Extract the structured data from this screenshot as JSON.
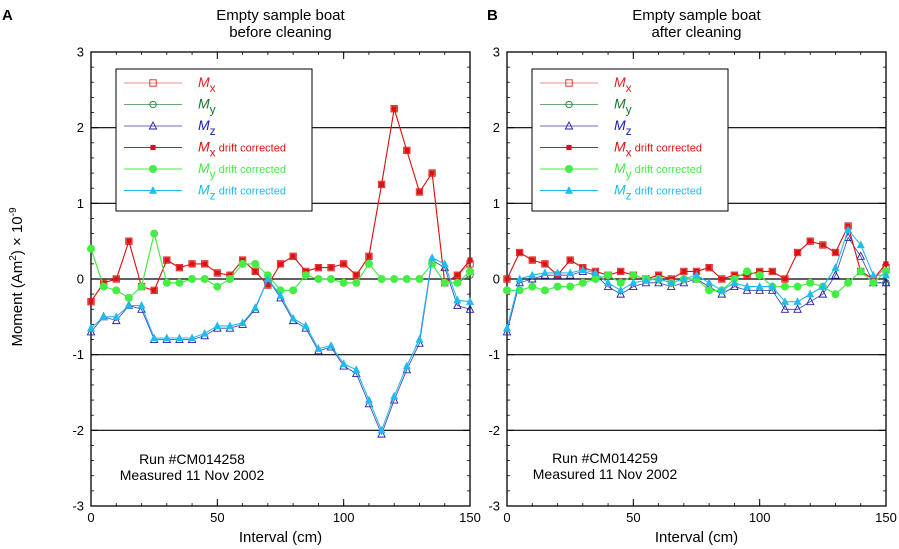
{
  "figure": {
    "ylabel": "Moment (Am²) × 10⁻⁹",
    "ylabel_parts": {
      "main": "Moment (Am",
      "sup1": "2",
      "mid": ") × 10",
      "sup2": "-9"
    }
  },
  "chart_data": [
    {
      "type": "line",
      "panel_letter": "A",
      "title": [
        "Empty sample boat",
        "before cleaning"
      ],
      "xlabel": "Interval (cm)",
      "ylabel": "Moment (Am²) × 10⁻⁹",
      "xlim": [
        0,
        150
      ],
      "ylim": [
        -3,
        3
      ],
      "xticks": [
        0,
        50,
        100,
        150
      ],
      "yticks": [
        -3,
        -2,
        -1,
        0,
        1,
        2,
        3
      ],
      "hlines": [
        -2,
        -1,
        1,
        2
      ],
      "zero_line": true,
      "legend_position": "top-left",
      "annotation": [
        "Run #CM014258",
        "Measured 11 Nov 2002"
      ],
      "x": [
        0,
        5,
        10,
        15,
        20,
        25,
        30,
        35,
        40,
        45,
        50,
        55,
        60,
        65,
        70,
        75,
        80,
        85,
        90,
        95,
        100,
        105,
        110,
        115,
        120,
        125,
        130,
        135,
        140,
        145,
        150
      ],
      "series": [
        {
          "key": "mx",
          "values": [
            -0.3,
            -0.05,
            0.0,
            0.5,
            -0.1,
            -0.15,
            0.25,
            0.15,
            0.2,
            0.2,
            0.08,
            0.05,
            0.25,
            0.1,
            -0.08,
            0.2,
            0.3,
            0.1,
            0.15,
            0.15,
            0.2,
            0.05,
            0.3,
            1.25,
            2.25,
            1.7,
            1.15,
            1.4,
            -0.05,
            0.05,
            0.2
          ]
        },
        {
          "key": "my",
          "values": [
            0.4,
            -0.1,
            -0.15,
            -0.25,
            -0.1,
            0.6,
            -0.05,
            -0.05,
            0.0,
            0.0,
            -0.1,
            0.0,
            0.2,
            0.2,
            0.05,
            -0.15,
            -0.15,
            0.05,
            0.0,
            0.0,
            -0.05,
            -0.05,
            0.2,
            0.0,
            0.0,
            0.0,
            0.0,
            0.2,
            -0.05,
            -0.05,
            0.05
          ]
        },
        {
          "key": "mz",
          "values": [
            -0.7,
            -0.5,
            -0.55,
            -0.35,
            -0.4,
            -0.8,
            -0.8,
            -0.8,
            -0.8,
            -0.75,
            -0.65,
            -0.65,
            -0.6,
            -0.4,
            0.0,
            -0.25,
            -0.55,
            -0.65,
            -0.95,
            -0.9,
            -1.15,
            -1.25,
            -1.65,
            -2.05,
            -1.6,
            -1.2,
            -0.85,
            0.25,
            0.15,
            -0.35,
            -0.4
          ]
        },
        {
          "key": "mx_dc",
          "values": [
            -0.3,
            -0.05,
            0.0,
            0.5,
            -0.1,
            -0.15,
            0.25,
            0.15,
            0.2,
            0.2,
            0.08,
            0.05,
            0.25,
            0.1,
            -0.08,
            0.2,
            0.3,
            0.1,
            0.15,
            0.15,
            0.2,
            0.05,
            0.3,
            1.25,
            2.25,
            1.7,
            1.15,
            1.4,
            -0.05,
            0.05,
            0.25
          ]
        },
        {
          "key": "my_dc",
          "values": [
            0.4,
            -0.1,
            -0.15,
            -0.25,
            -0.1,
            0.6,
            -0.05,
            -0.05,
            0.0,
            0.0,
            -0.1,
            0.0,
            0.2,
            0.2,
            0.05,
            -0.15,
            -0.15,
            0.05,
            0.0,
            0.0,
            -0.05,
            -0.05,
            0.2,
            0.0,
            0.0,
            0.0,
            0.0,
            0.2,
            -0.05,
            -0.05,
            0.1
          ]
        },
        {
          "key": "mz_dc",
          "values": [
            -0.65,
            -0.5,
            -0.5,
            -0.35,
            -0.35,
            -0.78,
            -0.78,
            -0.78,
            -0.78,
            -0.72,
            -0.62,
            -0.62,
            -0.58,
            -0.38,
            0.0,
            -0.22,
            -0.52,
            -0.62,
            -0.92,
            -0.88,
            -1.12,
            -1.2,
            -1.6,
            -2.0,
            -1.55,
            -1.15,
            -0.8,
            0.28,
            0.2,
            -0.28,
            -0.3
          ]
        }
      ]
    },
    {
      "type": "line",
      "panel_letter": "B",
      "title": [
        "Empty sample boat",
        "after cleaning"
      ],
      "xlabel": "Interval (cm)",
      "ylabel": "Moment (Am²) × 10⁻⁹",
      "xlim": [
        0,
        150
      ],
      "ylim": [
        -3,
        3
      ],
      "xticks": [
        0,
        50,
        100,
        150
      ],
      "yticks": [
        -3,
        -2,
        -1,
        0,
        1,
        2,
        3
      ],
      "hlines": [
        -2,
        -1,
        1,
        2
      ],
      "zero_line": true,
      "legend_position": "top-left",
      "annotation": [
        "Run #CM014259",
        "Measured 11 Nov 2002"
      ],
      "x": [
        0,
        5,
        10,
        15,
        20,
        25,
        30,
        35,
        40,
        45,
        50,
        55,
        60,
        65,
        70,
        75,
        80,
        85,
        90,
        95,
        100,
        105,
        110,
        115,
        120,
        125,
        130,
        135,
        140,
        145,
        150
      ],
      "series": [
        {
          "key": "mx",
          "values": [
            0.0,
            0.35,
            0.25,
            0.2,
            0.05,
            0.25,
            0.15,
            0.1,
            0.05,
            0.1,
            0.05,
            0.0,
            0.05,
            0.0,
            0.1,
            0.1,
            0.15,
            0.0,
            0.05,
            0.05,
            0.1,
            0.1,
            0.0,
            0.35,
            0.5,
            0.45,
            0.35,
            0.7,
            0.1,
            0.0,
            0.15
          ]
        },
        {
          "key": "my",
          "values": [
            -0.15,
            -0.15,
            -0.1,
            -0.15,
            -0.1,
            -0.1,
            -0.05,
            0.0,
            0.05,
            -0.05,
            0.05,
            0.0,
            0.0,
            -0.05,
            0.0,
            0.0,
            -0.15,
            -0.15,
            0.0,
            0.1,
            0.05,
            -0.1,
            -0.1,
            -0.1,
            -0.05,
            -0.1,
            -0.2,
            -0.05,
            0.1,
            -0.05,
            -0.05
          ]
        },
        {
          "key": "mz",
          "values": [
            -0.7,
            -0.05,
            0.0,
            0.05,
            0.05,
            0.05,
            0.1,
            0.05,
            -0.1,
            -0.2,
            -0.1,
            -0.05,
            -0.05,
            -0.1,
            -0.05,
            0.0,
            -0.1,
            -0.2,
            -0.1,
            -0.15,
            -0.15,
            -0.15,
            -0.4,
            -0.4,
            -0.3,
            -0.2,
            0.05,
            0.55,
            0.3,
            -0.05,
            -0.05
          ]
        },
        {
          "key": "mx_dc",
          "values": [
            0.0,
            0.35,
            0.25,
            0.2,
            0.05,
            0.25,
            0.15,
            0.1,
            0.05,
            0.1,
            0.05,
            0.0,
            0.05,
            0.0,
            0.1,
            0.1,
            0.15,
            0.0,
            0.05,
            0.05,
            0.1,
            0.1,
            0.0,
            0.35,
            0.5,
            0.45,
            0.35,
            0.7,
            0.1,
            0.0,
            0.2
          ]
        },
        {
          "key": "my_dc",
          "values": [
            -0.15,
            -0.15,
            -0.1,
            -0.15,
            -0.1,
            -0.1,
            -0.05,
            0.0,
            0.05,
            -0.05,
            0.05,
            0.0,
            0.0,
            -0.05,
            0.0,
            0.0,
            -0.15,
            -0.15,
            0.0,
            0.1,
            0.05,
            -0.1,
            -0.1,
            -0.1,
            -0.05,
            -0.1,
            -0.2,
            -0.05,
            0.1,
            -0.05,
            0.1
          ]
        },
        {
          "key": "mz_dc",
          "values": [
            -0.65,
            0.0,
            0.05,
            0.08,
            0.08,
            0.08,
            0.12,
            0.08,
            -0.05,
            -0.15,
            -0.05,
            -0.02,
            0.0,
            -0.05,
            0.0,
            0.05,
            -0.05,
            -0.15,
            -0.05,
            -0.1,
            -0.1,
            -0.1,
            -0.3,
            -0.3,
            -0.2,
            -0.1,
            0.15,
            0.65,
            0.45,
            0.05,
            0.05
          ]
        }
      ]
    }
  ],
  "legend": [
    {
      "key": "mx",
      "sym": "M",
      "sub": "x",
      "text": "",
      "color": "#dd2222",
      "marker": "open-square",
      "line": "#e46a6a"
    },
    {
      "key": "my",
      "sym": "M",
      "sub": "y",
      "text": "",
      "color": "#1a7a2e",
      "marker": "open-circle",
      "line": "#3d8a4a"
    },
    {
      "key": "mz",
      "sym": "M",
      "sub": "z",
      "text": "",
      "color": "#2222aa",
      "marker": "open-triangle",
      "line": "#3a3ab0"
    },
    {
      "key": "mx_dc",
      "sym": "M",
      "sub": "x",
      "text": " drift corrected",
      "color": "#dd1111",
      "marker": "filled-square",
      "line": "#dd1111"
    },
    {
      "key": "my_dc",
      "sym": "M",
      "sub": "y",
      "text": " drift corrected",
      "color": "#44ee44",
      "marker": "filled-circle",
      "line": "#44ee44"
    },
    {
      "key": "mz_dc",
      "sym": "M",
      "sub": "z",
      "text": " drift corrected",
      "color": "#22bbee",
      "marker": "filled-triangle",
      "line": "#22bbee"
    }
  ]
}
